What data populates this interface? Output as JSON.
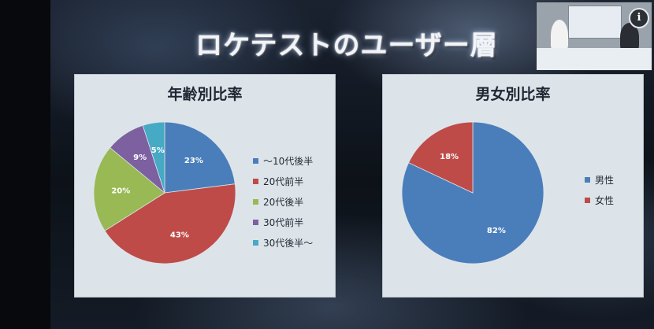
{
  "slide": {
    "title": "ロケテストのユーザー層"
  },
  "chart_data": [
    {
      "type": "pie",
      "title": "年齢別比率",
      "categories": [
        "～10代後半",
        "20代前半",
        "20代後半",
        "30代前半",
        "30代後半～"
      ],
      "values": [
        23,
        43,
        20,
        9,
        5
      ],
      "labels": [
        "23%",
        "43%",
        "20%",
        "9%",
        "5%"
      ],
      "colors": [
        "#4a7ebb",
        "#be4b48",
        "#98b954",
        "#7d60a0",
        "#46aac5"
      ],
      "legend": "right"
    },
    {
      "type": "pie",
      "title": "男女別比率",
      "categories": [
        "男性",
        "女性"
      ],
      "values": [
        82,
        18
      ],
      "labels": [
        "82%",
        "18%"
      ],
      "colors": [
        "#4a7ebb",
        "#be4b48"
      ],
      "legend": "right"
    }
  ],
  "icons": {
    "info": "info-icon"
  },
  "video": {
    "info_glyph": "i"
  }
}
